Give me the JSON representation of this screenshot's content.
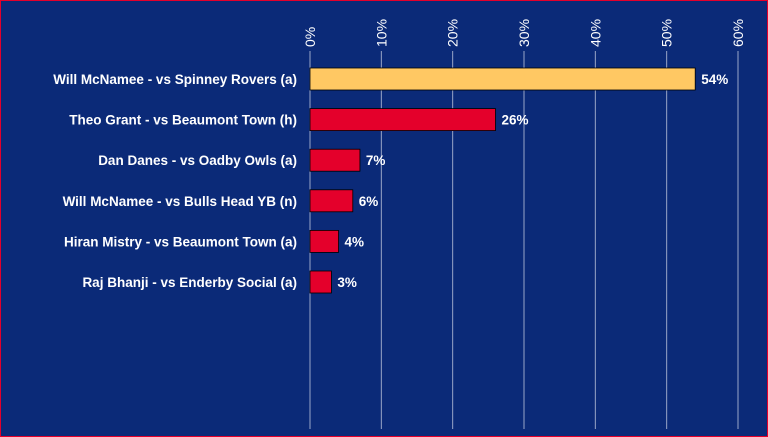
{
  "chart_data": {
    "type": "bar",
    "orientation": "horizontal",
    "categories": [
      "Will McNamee - vs Spinney Rovers (a)",
      "Theo Grant - vs Beaumont Town (h)",
      "Dan Danes - vs Oadby Owls (a)",
      "Will McNamee - vs Bulls Head YB (n)",
      "Hiran Mistry - vs Beaumont Town (a)",
      "Raj Bhanji - vs Enderby Social (a)"
    ],
    "values": [
      54,
      26,
      7,
      6,
      4,
      3
    ],
    "data_labels": [
      "54%",
      "26%",
      "7%",
      "6%",
      "4%",
      "3%"
    ],
    "xlim": [
      0,
      60
    ],
    "x_ticks": [
      0,
      10,
      20,
      30,
      40,
      50,
      60
    ],
    "x_tick_labels": [
      "0%",
      "10%",
      "20%",
      "30%",
      "40%",
      "50%",
      "60%"
    ],
    "x_axis_position": "top",
    "grid": true,
    "colors": {
      "background": "#0b2a78",
      "highlight_bar": "#ffc863",
      "bar": "#e4002b",
      "grid": "#9aa6c8",
      "text": "#ffffff",
      "border": "#e4002b"
    }
  }
}
